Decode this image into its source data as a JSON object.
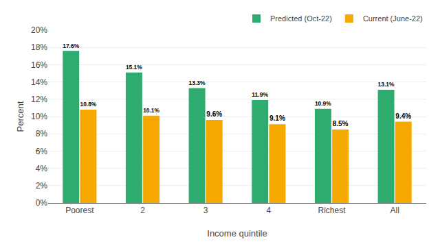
{
  "chart_data": {
    "type": "bar",
    "categories": [
      "Poorest",
      "2",
      "3",
      "4",
      "Richest",
      "All"
    ],
    "series": [
      {
        "name": "Predicted (Oct-22)",
        "color": "#2EAB6E",
        "values": [
          17.6,
          15.1,
          13.3,
          11.9,
          10.9,
          13.1
        ],
        "value_labels": [
          "17.6%",
          "15.1%",
          "13.3%",
          "11.9%",
          "10.9%",
          "13.1%"
        ]
      },
      {
        "name": "Current (June-22)",
        "color": "#F5A800",
        "values": [
          10.8,
          10.1,
          9.6,
          9.1,
          8.5,
          9.4
        ],
        "value_labels": [
          "10.8%",
          "10.1%",
          "9.6%",
          "9.1%",
          "8.5%",
          "9.4%"
        ]
      }
    ],
    "xlabel": "Income quintile",
    "ylabel": "Percent",
    "ylim": [
      0,
      20
    ],
    "yticks": [
      {
        "value": 0,
        "label": "0%"
      },
      {
        "value": 2,
        "label": "2%"
      },
      {
        "value": 4,
        "label": "4%"
      },
      {
        "value": 6,
        "label": "6%"
      },
      {
        "value": 8,
        "label": "8%"
      },
      {
        "value": 10,
        "label": "10%"
      },
      {
        "value": 12,
        "label": "12%"
      },
      {
        "value": 14,
        "label": "14%"
      },
      {
        "value": 16,
        "label": "16%"
      },
      {
        "value": 18,
        "label": "18%"
      },
      {
        "value": 20,
        "label": "20%"
      }
    ],
    "grid": true,
    "legend": "upper right",
    "data_labels": true
  }
}
